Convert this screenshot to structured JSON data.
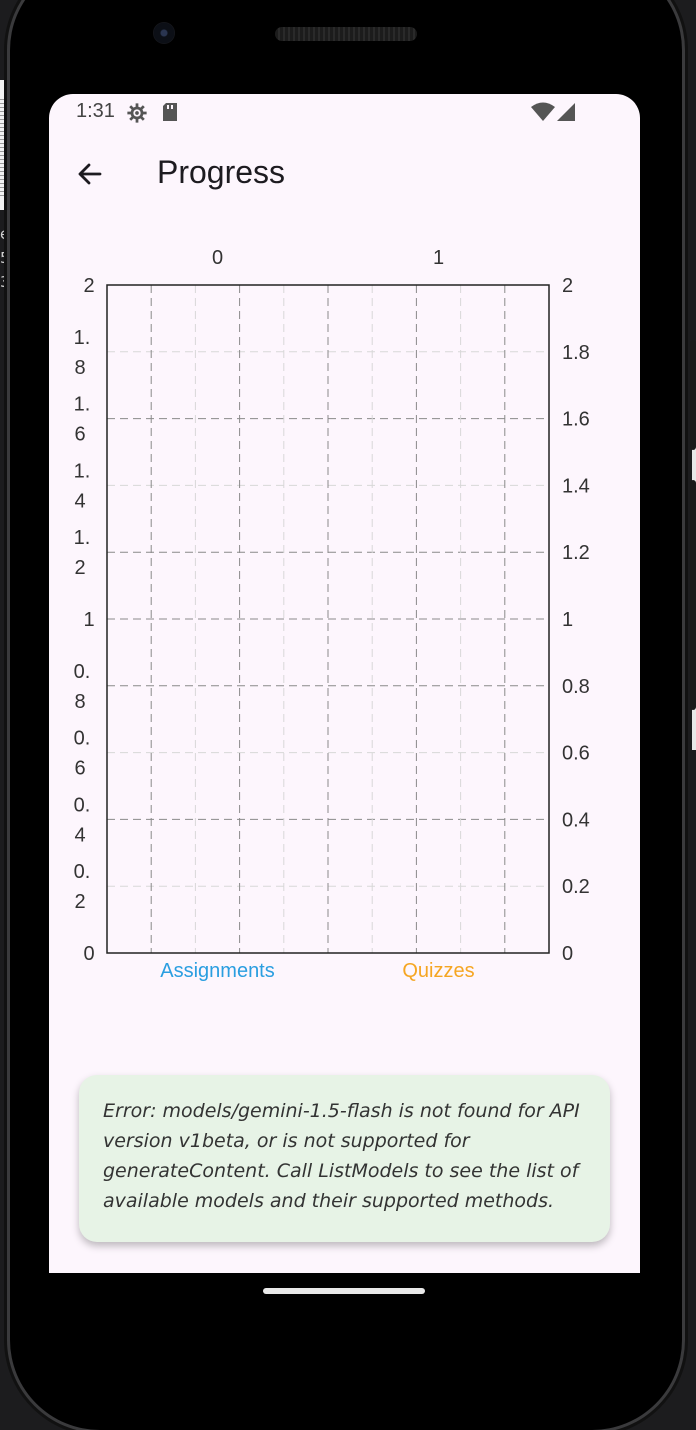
{
  "status_bar": {
    "time": "1:31",
    "icons": [
      "settings-gear-icon",
      "sd-card-icon",
      "wifi-icon",
      "cell-signal-icon"
    ]
  },
  "app_bar": {
    "back_icon": "arrow-left-icon",
    "title": "Progress"
  },
  "chart_data": {
    "type": "bar",
    "categories": [
      "Assignments",
      "Quizzes"
    ],
    "category_indices": [
      "0",
      "1"
    ],
    "category_colors": [
      "#2a9ee0",
      "#f5a623"
    ],
    "values": [
      0,
      0
    ],
    "ylim": [
      0,
      2
    ],
    "left_ticks": [
      [
        "2"
      ],
      [
        "1.",
        "8"
      ],
      [
        "1.",
        "6"
      ],
      [
        "1.",
        "4"
      ],
      [
        "1.",
        "2"
      ],
      [
        "1"
      ],
      [
        "0.",
        "8"
      ],
      [
        "0.",
        "6"
      ],
      [
        "0.",
        "4"
      ],
      [
        "0.",
        "2"
      ],
      [
        "0"
      ]
    ],
    "right_ticks": [
      "2",
      "1.8",
      "1.6",
      "1.4",
      "1.2",
      "1",
      "0.8",
      "0.6",
      "0.4",
      "0.2",
      "0"
    ],
    "grid": true,
    "title": "",
    "xlabel": "",
    "ylabel": ""
  },
  "error_card": {
    "text": "Error: models/gemini-1.5-flash is not found for API version v1beta, or is not supported for generateContent. Call ListModels to see the list of available models and their supported methods."
  },
  "background": {
    "snippets": [
      "ee",
      "5-",
      "33"
    ]
  },
  "colors": {
    "screen_bg": "#fdf6fd",
    "error_card_bg": "#e7f3e6",
    "assignments": "#2a9ee0",
    "quizzes": "#f5a623"
  }
}
